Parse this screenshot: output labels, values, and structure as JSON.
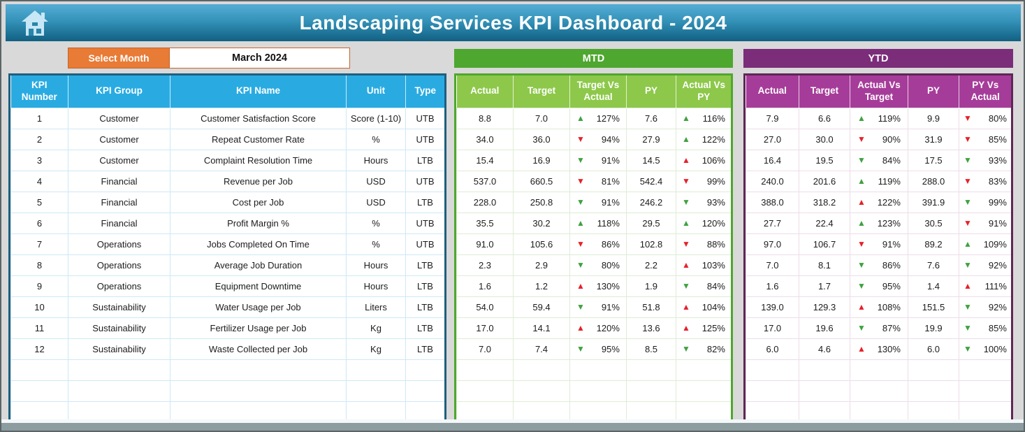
{
  "header": {
    "title": "Landscaping Services KPI Dashboard - 2024"
  },
  "controls": {
    "select_month_label": "Select Month",
    "selected_month": "March 2024"
  },
  "sections": {
    "mtd_title": "MTD",
    "ytd_title": "YTD"
  },
  "kpi_table": {
    "headers": [
      "KPI Number",
      "KPI Group",
      "KPI Name",
      "Unit",
      "Type"
    ]
  },
  "mtd_table": {
    "headers": [
      "Actual",
      "Target",
      "Target Vs Actual",
      "PY",
      "Actual Vs PY"
    ]
  },
  "ytd_table": {
    "headers": [
      "Actual",
      "Target",
      "Actual Vs Target",
      "PY",
      "PY Vs Actual"
    ]
  },
  "colors": {
    "titlebar_top": "#56ADD6",
    "titlebar_bottom": "#14607F",
    "kpi_header": "#29ABE2",
    "kpi_border": "#1E5F80",
    "orange": "#E87B35",
    "mtd_bar": "#4EA72E",
    "mtd_header": "#8DC84A",
    "ytd_bar": "#7B2D7A",
    "ytd_header": "#A63C99",
    "arrow_green": "#3FA23F",
    "arrow_red": "#E8202A",
    "bottom_bar": "#8C9C9F"
  },
  "empty_row_count": 3,
  "rows": [
    {
      "number": "1",
      "group": "Customer",
      "name": "Customer Satisfaction Score",
      "unit": "Score (1-10)",
      "type": "UTB",
      "mtd": {
        "actual": "8.8",
        "target": "7.0",
        "target_vs_actual": {
          "dir": "up",
          "color": "green",
          "value": "127%"
        },
        "py": "7.6",
        "actual_vs_py": {
          "dir": "up",
          "color": "green",
          "value": "116%"
        }
      },
      "ytd": {
        "actual": "7.9",
        "target": "6.6",
        "actual_vs_target": {
          "dir": "up",
          "color": "green",
          "value": "119%"
        },
        "py": "9.9",
        "py_vs_actual": {
          "dir": "down",
          "color": "red",
          "value": "80%"
        }
      }
    },
    {
      "number": "2",
      "group": "Customer",
      "name": "Repeat Customer Rate",
      "unit": "%",
      "type": "UTB",
      "mtd": {
        "actual": "34.0",
        "target": "36.0",
        "target_vs_actual": {
          "dir": "down",
          "color": "red",
          "value": "94%"
        },
        "py": "27.9",
        "actual_vs_py": {
          "dir": "up",
          "color": "green",
          "value": "122%"
        }
      },
      "ytd": {
        "actual": "27.0",
        "target": "30.0",
        "actual_vs_target": {
          "dir": "down",
          "color": "red",
          "value": "90%"
        },
        "py": "31.9",
        "py_vs_actual": {
          "dir": "down",
          "color": "red",
          "value": "85%"
        }
      }
    },
    {
      "number": "3",
      "group": "Customer",
      "name": "Complaint Resolution Time",
      "unit": "Hours",
      "type": "LTB",
      "mtd": {
        "actual": "15.4",
        "target": "16.9",
        "target_vs_actual": {
          "dir": "down",
          "color": "green",
          "value": "91%"
        },
        "py": "14.5",
        "actual_vs_py": {
          "dir": "up",
          "color": "red",
          "value": "106%"
        }
      },
      "ytd": {
        "actual": "16.4",
        "target": "19.5",
        "actual_vs_target": {
          "dir": "down",
          "color": "green",
          "value": "84%"
        },
        "py": "17.5",
        "py_vs_actual": {
          "dir": "down",
          "color": "green",
          "value": "93%"
        }
      }
    },
    {
      "number": "4",
      "group": "Financial",
      "name": "Revenue per Job",
      "unit": "USD",
      "type": "UTB",
      "mtd": {
        "actual": "537.0",
        "target": "660.5",
        "target_vs_actual": {
          "dir": "down",
          "color": "red",
          "value": "81%"
        },
        "py": "542.4",
        "actual_vs_py": {
          "dir": "down",
          "color": "red",
          "value": "99%"
        }
      },
      "ytd": {
        "actual": "240.0",
        "target": "201.6",
        "actual_vs_target": {
          "dir": "up",
          "color": "green",
          "value": "119%"
        },
        "py": "288.0",
        "py_vs_actual": {
          "dir": "down",
          "color": "red",
          "value": "83%"
        }
      }
    },
    {
      "number": "5",
      "group": "Financial",
      "name": "Cost per Job",
      "unit": "USD",
      "type": "LTB",
      "mtd": {
        "actual": "228.0",
        "target": "250.8",
        "target_vs_actual": {
          "dir": "down",
          "color": "green",
          "value": "91%"
        },
        "py": "246.2",
        "actual_vs_py": {
          "dir": "down",
          "color": "green",
          "value": "93%"
        }
      },
      "ytd": {
        "actual": "388.0",
        "target": "318.2",
        "actual_vs_target": {
          "dir": "up",
          "color": "red",
          "value": "122%"
        },
        "py": "391.9",
        "py_vs_actual": {
          "dir": "down",
          "color": "green",
          "value": "99%"
        }
      }
    },
    {
      "number": "6",
      "group": "Financial",
      "name": "Profit Margin %",
      "unit": "%",
      "type": "UTB",
      "mtd": {
        "actual": "35.5",
        "target": "30.2",
        "target_vs_actual": {
          "dir": "up",
          "color": "green",
          "value": "118%"
        },
        "py": "29.5",
        "actual_vs_py": {
          "dir": "up",
          "color": "green",
          "value": "120%"
        }
      },
      "ytd": {
        "actual": "27.7",
        "target": "22.4",
        "actual_vs_target": {
          "dir": "up",
          "color": "green",
          "value": "123%"
        },
        "py": "30.5",
        "py_vs_actual": {
          "dir": "down",
          "color": "red",
          "value": "91%"
        }
      }
    },
    {
      "number": "7",
      "group": "Operations",
      "name": "Jobs Completed On Time",
      "unit": "%",
      "type": "UTB",
      "mtd": {
        "actual": "91.0",
        "target": "105.6",
        "target_vs_actual": {
          "dir": "down",
          "color": "red",
          "value": "86%"
        },
        "py": "102.8",
        "actual_vs_py": {
          "dir": "down",
          "color": "red",
          "value": "88%"
        }
      },
      "ytd": {
        "actual": "97.0",
        "target": "106.7",
        "actual_vs_target": {
          "dir": "down",
          "color": "red",
          "value": "91%"
        },
        "py": "89.2",
        "py_vs_actual": {
          "dir": "up",
          "color": "green",
          "value": "109%"
        }
      }
    },
    {
      "number": "8",
      "group": "Operations",
      "name": "Average Job Duration",
      "unit": "Hours",
      "type": "LTB",
      "mtd": {
        "actual": "2.3",
        "target": "2.9",
        "target_vs_actual": {
          "dir": "down",
          "color": "green",
          "value": "80%"
        },
        "py": "2.2",
        "actual_vs_py": {
          "dir": "up",
          "color": "red",
          "value": "103%"
        }
      },
      "ytd": {
        "actual": "7.0",
        "target": "8.1",
        "actual_vs_target": {
          "dir": "down",
          "color": "green",
          "value": "86%"
        },
        "py": "7.6",
        "py_vs_actual": {
          "dir": "down",
          "color": "green",
          "value": "92%"
        }
      }
    },
    {
      "number": "9",
      "group": "Operations",
      "name": "Equipment Downtime",
      "unit": "Hours",
      "type": "LTB",
      "mtd": {
        "actual": "1.6",
        "target": "1.2",
        "target_vs_actual": {
          "dir": "up",
          "color": "red",
          "value": "130%"
        },
        "py": "1.9",
        "actual_vs_py": {
          "dir": "down",
          "color": "green",
          "value": "84%"
        }
      },
      "ytd": {
        "actual": "1.6",
        "target": "1.7",
        "actual_vs_target": {
          "dir": "down",
          "color": "green",
          "value": "95%"
        },
        "py": "1.4",
        "py_vs_actual": {
          "dir": "up",
          "color": "red",
          "value": "111%"
        }
      }
    },
    {
      "number": "10",
      "group": "Sustainability",
      "name": "Water Usage per Job",
      "unit": "Liters",
      "type": "LTB",
      "mtd": {
        "actual": "54.0",
        "target": "59.4",
        "target_vs_actual": {
          "dir": "down",
          "color": "green",
          "value": "91%"
        },
        "py": "51.8",
        "actual_vs_py": {
          "dir": "up",
          "color": "red",
          "value": "104%"
        }
      },
      "ytd": {
        "actual": "139.0",
        "target": "129.3",
        "actual_vs_target": {
          "dir": "up",
          "color": "red",
          "value": "108%"
        },
        "py": "151.5",
        "py_vs_actual": {
          "dir": "down",
          "color": "green",
          "value": "92%"
        }
      }
    },
    {
      "number": "11",
      "group": "Sustainability",
      "name": "Fertilizer Usage per Job",
      "unit": "Kg",
      "type": "LTB",
      "mtd": {
        "actual": "17.0",
        "target": "14.1",
        "target_vs_actual": {
          "dir": "up",
          "color": "red",
          "value": "120%"
        },
        "py": "13.6",
        "actual_vs_py": {
          "dir": "up",
          "color": "red",
          "value": "125%"
        }
      },
      "ytd": {
        "actual": "17.0",
        "target": "19.6",
        "actual_vs_target": {
          "dir": "down",
          "color": "green",
          "value": "87%"
        },
        "py": "19.9",
        "py_vs_actual": {
          "dir": "down",
          "color": "green",
          "value": "85%"
        }
      }
    },
    {
      "number": "12",
      "group": "Sustainability",
      "name": "Waste Collected per Job",
      "unit": "Kg",
      "type": "LTB",
      "mtd": {
        "actual": "7.0",
        "target": "7.4",
        "target_vs_actual": {
          "dir": "down",
          "color": "green",
          "value": "95%"
        },
        "py": "8.5",
        "actual_vs_py": {
          "dir": "down",
          "color": "green",
          "value": "82%"
        }
      },
      "ytd": {
        "actual": "6.0",
        "target": "4.6",
        "actual_vs_target": {
          "dir": "up",
          "color": "red",
          "value": "130%"
        },
        "py": "6.0",
        "py_vs_actual": {
          "dir": "down",
          "color": "green",
          "value": "100%"
        }
      }
    }
  ]
}
